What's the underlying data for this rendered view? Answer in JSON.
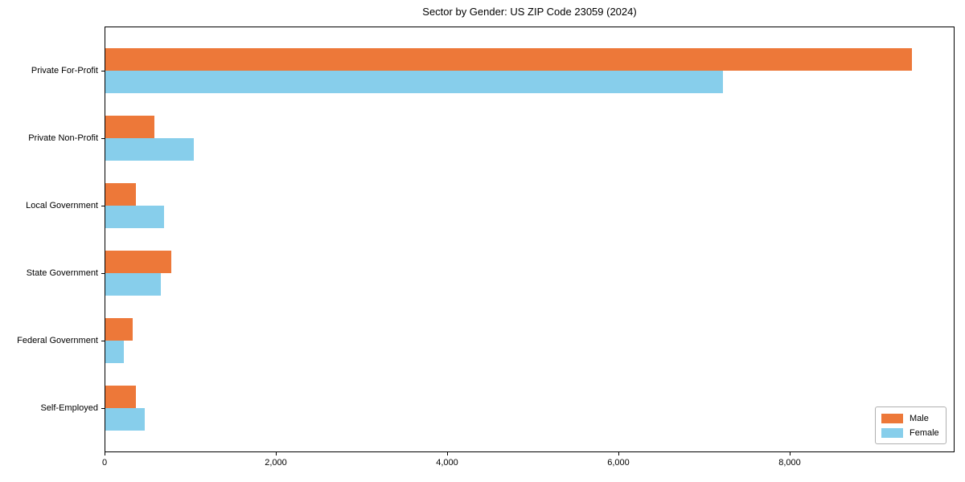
{
  "chart_data": {
    "type": "bar",
    "orientation": "horizontal",
    "title": "Sector by Gender: US ZIP Code 23059 (2024)",
    "categories": [
      "Private For-Profit",
      "Private Non-Profit",
      "Local Government",
      "State Government",
      "Federal Government",
      "Self-Employed"
    ],
    "series": [
      {
        "name": "Male",
        "color": "#ED7839",
        "values": [
          9430,
          585,
          366,
          780,
          329,
          366
        ]
      },
      {
        "name": "Female",
        "color": "#87CEEB",
        "values": [
          7220,
          1040,
          695,
          657,
          225,
          470
        ]
      }
    ],
    "xlabel": "",
    "ylabel": "",
    "xlim": [
      0,
      9925
    ],
    "xticks": [
      0,
      2000,
      4000,
      6000,
      8000
    ],
    "xtick_labels": [
      "0",
      "2,000",
      "4,000",
      "6,000",
      "8,000"
    ],
    "legend_position": "lower right",
    "grid": false,
    "background_color": "#ffffff",
    "spine_color": "#000000"
  }
}
